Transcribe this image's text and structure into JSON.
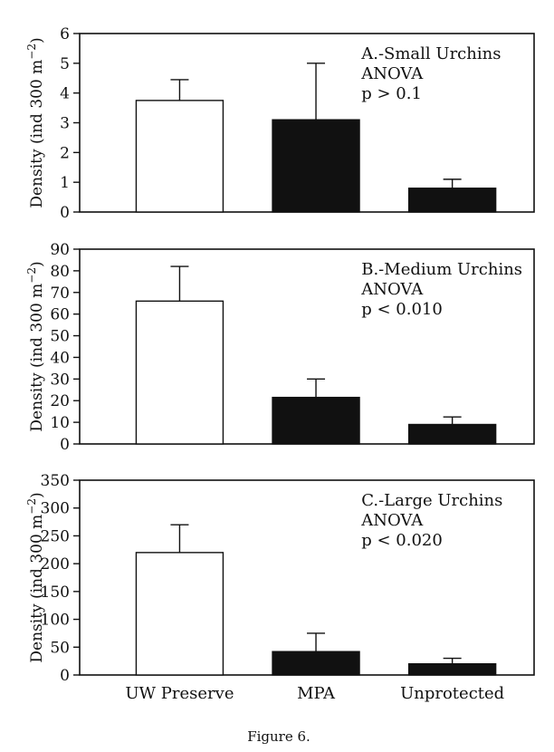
{
  "figure": {
    "caption": "Figure 6."
  },
  "chart_data": [
    {
      "type": "bar",
      "categories": [
        "UW Preserve",
        "MPA",
        "Unprotected"
      ],
      "values": [
        3.75,
        3.1,
        0.8
      ],
      "errors": [
        0.7,
        1.9,
        0.3
      ],
      "bar_fill": [
        "#ffffff",
        "#111111",
        "#111111"
      ],
      "ylabel_main": "Density (ind 300 m",
      "ylabel_exp": "−2",
      "ylabel_close": ")",
      "ylim": [
        0,
        6
      ],
      "yticks": [
        0,
        1,
        2,
        3,
        4,
        5,
        6
      ],
      "annotations": [
        "A.-Small Urchins",
        "ANOVA",
        "p > 0.1"
      ],
      "show_xticklabels": false,
      "grid": false
    },
    {
      "type": "bar",
      "categories": [
        "UW Preserve",
        "MPA",
        "Unprotected"
      ],
      "values": [
        66,
        21.5,
        9
      ],
      "errors": [
        16,
        8.5,
        3.5
      ],
      "bar_fill": [
        "#ffffff",
        "#111111",
        "#111111"
      ],
      "ylabel_main": "Density (ind 300 m",
      "ylabel_exp": "−2",
      "ylabel_close": ")",
      "ylim": [
        0,
        90
      ],
      "yticks": [
        0,
        10,
        20,
        30,
        40,
        50,
        60,
        70,
        80,
        90
      ],
      "annotations": [
        "B.-Medium Urchins",
        "ANOVA",
        "p < 0.010"
      ],
      "show_xticklabels": false,
      "grid": false
    },
    {
      "type": "bar",
      "categories": [
        "UW Preserve",
        "MPA",
        "Unprotected"
      ],
      "values": [
        220,
        42,
        20
      ],
      "errors": [
        50,
        33,
        10
      ],
      "bar_fill": [
        "#ffffff",
        "#111111",
        "#111111"
      ],
      "ylabel_main": "Density (ind 300 m",
      "ylabel_exp": "−2",
      "ylabel_close": ")",
      "ylim": [
        0,
        350
      ],
      "yticks": [
        0,
        50,
        100,
        150,
        200,
        250,
        300,
        350
      ],
      "annotations": [
        "C.-Large Urchins",
        "ANOVA",
        "p < 0.020"
      ],
      "show_xticklabels": true,
      "grid": false
    }
  ]
}
